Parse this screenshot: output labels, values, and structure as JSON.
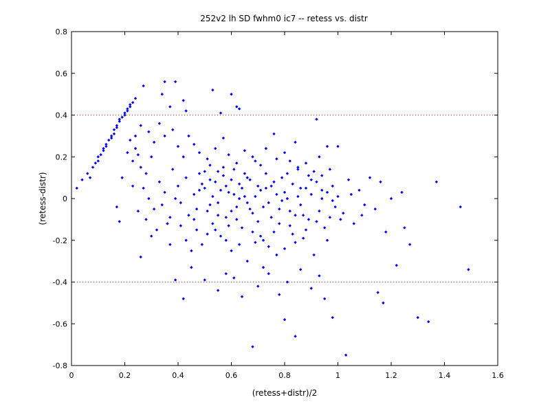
{
  "chart_data": {
    "type": "scatter",
    "title": "252v2 lh SD fwhm0 ic7 -- retess vs. distr",
    "xlabel": "(retess+distr)/2",
    "ylabel": "(retess-distr)",
    "xlim": [
      0,
      1.6
    ],
    "ylim": [
      -0.8,
      0.8
    ],
    "xticks": [
      "0",
      "0.2",
      "0.4",
      "0.6",
      "0.8",
      "1",
      "1.2",
      "1.4",
      "1.6"
    ],
    "yticks": [
      "0.8",
      "0.6",
      "0.4",
      "0.2",
      "0",
      "-0.2",
      "-0.4",
      "-0.6",
      "-0.8"
    ],
    "grid": false,
    "reference_lines": [
      0.4,
      -0.4
    ],
    "colors": {
      "points": "#0000ff",
      "reference_lines": "#ff0000",
      "axes": "#000000"
    },
    "points": [
      [
        0.02,
        0.05
      ],
      [
        0.04,
        0.09
      ],
      [
        0.06,
        0.12
      ],
      [
        0.07,
        0.1
      ],
      [
        0.08,
        0.15
      ],
      [
        0.09,
        0.17
      ],
      [
        0.1,
        0.18
      ],
      [
        0.1,
        0.2
      ],
      [
        0.11,
        0.21
      ],
      [
        0.12,
        0.23
      ],
      [
        0.12,
        0.24
      ],
      [
        0.13,
        0.25
      ],
      [
        0.13,
        0.26
      ],
      [
        0.14,
        0.28
      ],
      [
        0.15,
        0.29
      ],
      [
        0.15,
        0.3
      ],
      [
        0.16,
        0.31
      ],
      [
        0.16,
        0.33
      ],
      [
        0.17,
        0.34
      ],
      [
        0.17,
        0.35
      ],
      [
        0.18,
        0.37
      ],
      [
        0.18,
        0.38
      ],
      [
        0.19,
        0.39
      ],
      [
        0.2,
        0.4
      ],
      [
        0.2,
        0.41
      ],
      [
        0.21,
        0.42
      ],
      [
        0.21,
        0.43
      ],
      [
        0.22,
        0.44
      ],
      [
        0.22,
        0.45
      ],
      [
        0.23,
        0.46
      ],
      [
        0.24,
        0.48
      ],
      [
        0.27,
        0.54
      ],
      [
        0.35,
        0.56
      ],
      [
        0.39,
        0.56
      ],
      [
        0.34,
        0.5
      ],
      [
        0.53,
        0.52
      ],
      [
        0.6,
        0.5
      ],
      [
        0.37,
        0.44
      ],
      [
        0.42,
        0.47
      ],
      [
        0.56,
        0.41
      ],
      [
        0.62,
        0.44
      ],
      [
        0.43,
        0.42
      ],
      [
        0.63,
        0.43
      ],
      [
        0.92,
        0.38
      ],
      [
        0.76,
        0.31
      ],
      [
        0.84,
        0.27
      ],
      [
        0.93,
        0.2
      ],
      [
        0.96,
        0.25
      ],
      [
        1.0,
        0.25
      ],
      [
        0.17,
        -0.04
      ],
      [
        0.18,
        -0.11
      ],
      [
        0.22,
        0.28
      ],
      [
        0.24,
        0.24
      ],
      [
        0.25,
        0.21
      ],
      [
        0.23,
        0.18
      ],
      [
        0.26,
        0.15
      ],
      [
        0.28,
        0.12
      ],
      [
        0.3,
        0.2
      ],
      [
        0.27,
        0.05
      ],
      [
        0.29,
        0.0
      ],
      [
        0.31,
        -0.05
      ],
      [
        0.33,
        0.08
      ],
      [
        0.35,
        0.03
      ],
      [
        0.36,
        -0.12
      ],
      [
        0.38,
        0.14
      ],
      [
        0.4,
        0.06
      ],
      [
        0.41,
        -0.02
      ],
      [
        0.43,
        0.1
      ],
      [
        0.44,
        -0.08
      ],
      [
        0.46,
        0.02
      ],
      [
        0.47,
        -0.15
      ],
      [
        0.48,
        0.12
      ],
      [
        0.49,
        -0.22
      ],
      [
        0.5,
        0.05
      ],
      [
        0.51,
        -0.06
      ],
      [
        0.52,
        0.16
      ],
      [
        0.53,
        -0.12
      ],
      [
        0.54,
        0.08
      ],
      [
        0.55,
        -0.02
      ],
      [
        0.56,
        -0.18
      ],
      [
        0.57,
        0.11
      ],
      [
        0.58,
        -0.09
      ],
      [
        0.59,
        0.03
      ],
      [
        0.6,
        -0.25
      ],
      [
        0.61,
        0.14
      ],
      [
        0.62,
        -0.04
      ],
      [
        0.63,
        0.07
      ],
      [
        0.64,
        -0.14
      ],
      [
        0.65,
        0.01
      ],
      [
        0.66,
        -0.3
      ],
      [
        0.67,
        0.09
      ],
      [
        0.68,
        -0.07
      ],
      [
        0.69,
        0.18
      ],
      [
        0.7,
        -0.11
      ],
      [
        0.71,
        0.04
      ],
      [
        0.72,
        -0.2
      ],
      [
        0.73,
        0.12
      ],
      [
        0.74,
        -0.02
      ],
      [
        0.75,
        0.06
      ],
      [
        0.76,
        -0.16
      ],
      [
        0.77,
        0.02
      ],
      [
        0.78,
        -0.05
      ],
      [
        0.79,
        0.1
      ],
      [
        0.8,
        -0.24
      ],
      [
        0.81,
        0.0
      ],
      [
        0.82,
        -0.13
      ],
      [
        0.83,
        0.07
      ],
      [
        0.84,
        -0.08
      ],
      [
        0.85,
        0.15
      ],
      [
        0.86,
        -0.03
      ],
      [
        0.87,
        -0.19
      ],
      [
        0.88,
        0.05
      ],
      [
        0.89,
        -0.1
      ],
      [
        0.9,
        0.02
      ],
      [
        0.91,
        -0.27
      ],
      [
        0.92,
        0.08
      ],
      [
        0.93,
        -0.06
      ],
      [
        0.94,
        0.0
      ],
      [
        0.95,
        -0.14
      ],
      [
        0.96,
        0.03
      ],
      [
        0.97,
        -0.09
      ],
      [
        0.98,
        0.06
      ],
      [
        0.99,
        -0.04
      ],
      [
        1.0,
        0.01
      ],
      [
        1.02,
        -0.07
      ],
      [
        1.04,
        0.09
      ],
      [
        1.06,
        -0.12
      ],
      [
        1.08,
        0.04
      ],
      [
        1.1,
        -0.03
      ],
      [
        1.12,
        0.1
      ],
      [
        1.14,
        -0.05
      ],
      [
        1.16,
        0.08
      ],
      [
        1.18,
        -0.16
      ],
      [
        1.2,
        0.0
      ],
      [
        1.22,
        -0.32
      ],
      [
        1.24,
        0.03
      ],
      [
        1.25,
        -0.14
      ],
      [
        1.27,
        -0.22
      ],
      [
        1.3,
        -0.57
      ],
      [
        1.34,
        -0.59
      ],
      [
        1.37,
        0.08
      ],
      [
        1.46,
        -0.04
      ],
      [
        1.49,
        -0.34
      ],
      [
        1.03,
        -0.75
      ],
      [
        0.68,
        -0.71
      ],
      [
        0.84,
        -0.66
      ],
      [
        0.8,
        -0.58
      ],
      [
        0.98,
        -0.57
      ],
      [
        0.95,
        -0.48
      ],
      [
        1.17,
        -0.5
      ],
      [
        1.15,
        -0.45
      ],
      [
        0.42,
        -0.48
      ],
      [
        0.39,
        -0.39
      ],
      [
        0.26,
        -0.28
      ],
      [
        0.3,
        -0.18
      ],
      [
        0.37,
        -0.22
      ],
      [
        0.45,
        -0.33
      ],
      [
        0.55,
        -0.44
      ],
      [
        0.61,
        -0.38
      ],
      [
        0.64,
        -0.47
      ],
      [
        0.7,
        -0.42
      ],
      [
        0.74,
        -0.36
      ],
      [
        0.78,
        -0.46
      ],
      [
        0.81,
        -0.4
      ],
      [
        0.86,
        -0.34
      ],
      [
        0.9,
        -0.43
      ],
      [
        0.93,
        -0.37
      ],
      [
        0.72,
        -0.33
      ],
      [
        0.58,
        -0.36
      ],
      [
        0.5,
        -0.39
      ],
      [
        0.44,
        0.3
      ],
      [
        0.46,
        0.26
      ],
      [
        0.48,
        0.22
      ],
      [
        0.51,
        0.19
      ],
      [
        0.54,
        0.24
      ],
      [
        0.57,
        0.29
      ],
      [
        0.59,
        0.21
      ],
      [
        0.62,
        0.17
      ],
      [
        0.65,
        0.23
      ],
      [
        0.68,
        0.2
      ],
      [
        0.71,
        0.16
      ],
      [
        0.73,
        0.24
      ],
      [
        0.77,
        0.19
      ],
      [
        0.8,
        0.22
      ],
      [
        0.82,
        0.18
      ],
      [
        0.85,
        0.14
      ],
      [
        0.88,
        0.17
      ],
      [
        0.91,
        0.13
      ],
      [
        0.94,
        0.11
      ],
      [
        0.97,
        0.14
      ],
      [
        0.33,
        0.36
      ],
      [
        0.35,
        0.3
      ],
      [
        0.31,
        0.27
      ],
      [
        0.38,
        0.33
      ],
      [
        0.4,
        0.25
      ],
      [
        0.42,
        0.2
      ],
      [
        0.29,
        0.32
      ],
      [
        0.26,
        0.35
      ],
      [
        0.24,
        0.3
      ],
      [
        0.21,
        0.22
      ],
      [
        0.19,
        0.1
      ],
      [
        0.23,
        0.06
      ],
      [
        0.25,
        -0.06
      ],
      [
        0.28,
        -0.1
      ],
      [
        0.32,
        -0.15
      ],
      [
        0.34,
        -0.03
      ],
      [
        0.37,
        -0.09
      ],
      [
        0.39,
        0.0
      ],
      [
        0.41,
        -0.13
      ],
      [
        0.43,
        -0.2
      ],
      [
        0.45,
        -0.25
      ],
      [
        0.47,
        -0.05
      ],
      [
        0.49,
        0.07
      ],
      [
        0.52,
        -0.03
      ],
      [
        0.54,
        -0.15
      ],
      [
        0.56,
        0.04
      ],
      [
        0.58,
        -0.2
      ],
      [
        0.6,
        0.09
      ],
      [
        0.62,
        -0.1
      ],
      [
        0.64,
        0.05
      ],
      [
        0.66,
        -0.02
      ],
      [
        0.68,
        -0.16
      ],
      [
        0.7,
        0.06
      ],
      [
        0.72,
        -0.04
      ],
      [
        0.74,
        -0.23
      ],
      [
        0.76,
        0.08
      ],
      [
        0.78,
        -0.12
      ],
      [
        0.8,
        0.03
      ],
      [
        0.82,
        -0.06
      ],
      [
        0.84,
        -0.21
      ],
      [
        0.86,
        0.05
      ],
      [
        0.88,
        -0.15
      ],
      [
        0.9,
        0.09
      ],
      [
        0.92,
        -0.11
      ],
      [
        0.94,
        0.04
      ],
      [
        0.96,
        -0.2
      ],
      [
        0.98,
        -0.01
      ],
      [
        1.01,
        -0.1
      ],
      [
        1.05,
        0.02
      ],
      [
        1.09,
        -0.08
      ],
      [
        0.5,
        0.13
      ],
      [
        0.53,
        0.01
      ],
      [
        0.55,
        -0.08
      ],
      [
        0.57,
        0.15
      ],
      [
        0.59,
        -0.13
      ],
      [
        0.61,
        0.02
      ],
      [
        0.63,
        -0.22
      ],
      [
        0.65,
        0.12
      ],
      [
        0.67,
        -0.05
      ],
      [
        0.69,
        0.01
      ],
      [
        0.71,
        -0.18
      ],
      [
        0.73,
        0.05
      ],
      [
        0.75,
        -0.09
      ],
      [
        0.77,
        -0.27
      ],
      [
        0.79,
        -0.01
      ],
      [
        0.81,
        0.12
      ],
      [
        0.83,
        -0.17
      ],
      [
        0.85,
        0.01
      ],
      [
        0.87,
        -0.08
      ],
      [
        0.89,
        0.11
      ],
      [
        0.46,
        -0.1
      ],
      [
        0.48,
        0.04
      ],
      [
        0.51,
        -0.17
      ],
      [
        0.52,
        0.09
      ],
      [
        0.55,
        0.13
      ],
      [
        0.58,
        0.06
      ],
      [
        0.6,
        -0.06
      ],
      [
        0.63,
        0.0
      ],
      [
        0.66,
        0.1
      ],
      [
        0.69,
        -0.21
      ]
    ]
  }
}
